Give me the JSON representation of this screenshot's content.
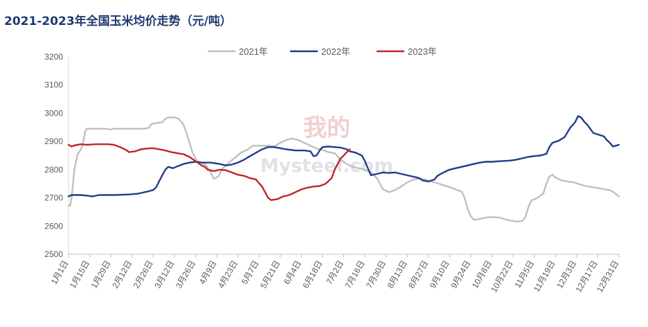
{
  "chart_data": {
    "type": "line",
    "title": "2021-2023年全国玉米均价走势（元/吨）",
    "xlabel": "",
    "ylabel": "",
    "ylim": [
      2500,
      3200
    ],
    "yticks": [
      2500,
      2600,
      2700,
      2800,
      2900,
      3000,
      3100,
      3200
    ],
    "x_domain_days": [
      0,
      364
    ],
    "xticks": [
      {
        "label": "1月1日",
        "day": 0
      },
      {
        "label": "1月15日",
        "day": 14
      },
      {
        "label": "1月29日",
        "day": 28
      },
      {
        "label": "2月12日",
        "day": 42
      },
      {
        "label": "2月26日",
        "day": 56
      },
      {
        "label": "3月12日",
        "day": 70
      },
      {
        "label": "3月26日",
        "day": 84
      },
      {
        "label": "4月9日",
        "day": 98
      },
      {
        "label": "4月23日",
        "day": 112
      },
      {
        "label": "5月7日",
        "day": 126
      },
      {
        "label": "5月21日",
        "day": 140
      },
      {
        "label": "6月4日",
        "day": 154
      },
      {
        "label": "6月18日",
        "day": 168
      },
      {
        "label": "7月2日",
        "day": 182
      },
      {
        "label": "7月16日",
        "day": 196
      },
      {
        "label": "7月30日",
        "day": 210
      },
      {
        "label": "8月13日",
        "day": 224
      },
      {
        "label": "8月27日",
        "day": 238
      },
      {
        "label": "9月10日",
        "day": 252
      },
      {
        "label": "9月24日",
        "day": 266
      },
      {
        "label": "10月8日",
        "day": 280
      },
      {
        "label": "10月22日",
        "day": 294
      },
      {
        "label": "11月5日",
        "day": 308
      },
      {
        "label": "11月19日",
        "day": 322
      },
      {
        "label": "12月3日",
        "day": 336
      },
      {
        "label": "12月17日",
        "day": 350
      },
      {
        "label": "12月31日",
        "day": 364
      }
    ],
    "grid": false,
    "legend_position": "top-center",
    "series": [
      {
        "name": "2021年",
        "color": "#bfbfbf",
        "points": [
          [
            0,
            2672
          ],
          [
            1,
            2672
          ],
          [
            2,
            2700
          ],
          [
            4,
            2805
          ],
          [
            6,
            2855
          ],
          [
            8,
            2870
          ],
          [
            9,
            2885
          ],
          [
            10,
            2905
          ],
          [
            11,
            2935
          ],
          [
            12,
            2945
          ],
          [
            18,
            2945
          ],
          [
            25,
            2945
          ],
          [
            28,
            2942
          ],
          [
            30,
            2945
          ],
          [
            40,
            2945
          ],
          [
            50,
            2945
          ],
          [
            53,
            2948
          ],
          [
            55,
            2962
          ],
          [
            58,
            2965
          ],
          [
            62,
            2968
          ],
          [
            64,
            2980
          ],
          [
            66,
            2985
          ],
          [
            70,
            2985
          ],
          [
            73,
            2980
          ],
          [
            76,
            2960
          ],
          [
            78,
            2930
          ],
          [
            80,
            2895
          ],
          [
            82,
            2860
          ],
          [
            85,
            2830
          ],
          [
            88,
            2825
          ],
          [
            91,
            2815
          ],
          [
            94,
            2790
          ],
          [
            96,
            2768
          ],
          [
            99,
            2775
          ],
          [
            102,
            2805
          ],
          [
            106,
            2825
          ],
          [
            110,
            2842
          ],
          [
            114,
            2860
          ],
          [
            118,
            2870
          ],
          [
            122,
            2885
          ],
          [
            127,
            2885
          ],
          [
            133,
            2885
          ],
          [
            136,
            2882
          ],
          [
            140,
            2895
          ],
          [
            144,
            2905
          ],
          [
            148,
            2910
          ],
          [
            152,
            2905
          ],
          [
            156,
            2895
          ],
          [
            160,
            2885
          ],
          [
            164,
            2875
          ],
          [
            168,
            2870
          ],
          [
            172,
            2862
          ],
          [
            176,
            2858
          ],
          [
            180,
            2835
          ],
          [
            184,
            2820
          ],
          [
            188,
            2810
          ],
          [
            192,
            2805
          ],
          [
            196,
            2800
          ],
          [
            200,
            2790
          ],
          [
            204,
            2770
          ],
          [
            208,
            2730
          ],
          [
            212,
            2720
          ],
          [
            216,
            2728
          ],
          [
            220,
            2740
          ],
          [
            224,
            2755
          ],
          [
            228,
            2765
          ],
          [
            232,
            2768
          ],
          [
            236,
            2765
          ],
          [
            240,
            2758
          ],
          [
            244,
            2752
          ],
          [
            248,
            2745
          ],
          [
            252,
            2738
          ],
          [
            256,
            2730
          ],
          [
            260,
            2722
          ],
          [
            262,
            2700
          ],
          [
            264,
            2660
          ],
          [
            266,
            2635
          ],
          [
            268,
            2622
          ],
          [
            272,
            2625
          ],
          [
            276,
            2630
          ],
          [
            280,
            2632
          ],
          [
            285,
            2630
          ],
          [
            290,
            2622
          ],
          [
            296,
            2616
          ],
          [
            300,
            2618
          ],
          [
            302,
            2630
          ],
          [
            304,
            2665
          ],
          [
            306,
            2690
          ],
          [
            310,
            2700
          ],
          [
            314,
            2715
          ],
          [
            316,
            2750
          ],
          [
            318,
            2775
          ],
          [
            320,
            2782
          ],
          [
            322,
            2772
          ],
          [
            326,
            2762
          ],
          [
            330,
            2758
          ],
          [
            334,
            2755
          ],
          [
            338,
            2748
          ],
          [
            342,
            2742
          ],
          [
            346,
            2738
          ],
          [
            350,
            2735
          ],
          [
            355,
            2730
          ],
          [
            358,
            2728
          ],
          [
            361,
            2718
          ],
          [
            364,
            2705
          ]
        ]
      },
      {
        "name": "2022年",
        "color": "#1f3d8a",
        "points": [
          [
            0,
            2705
          ],
          [
            2,
            2710
          ],
          [
            8,
            2710
          ],
          [
            12,
            2708
          ],
          [
            16,
            2705
          ],
          [
            20,
            2710
          ],
          [
            30,
            2710
          ],
          [
            40,
            2712
          ],
          [
            46,
            2715
          ],
          [
            52,
            2722
          ],
          [
            56,
            2728
          ],
          [
            58,
            2738
          ],
          [
            61,
            2770
          ],
          [
            64,
            2800
          ],
          [
            66,
            2810
          ],
          [
            69,
            2805
          ],
          [
            72,
            2812
          ],
          [
            76,
            2820
          ],
          [
            80,
            2825
          ],
          [
            84,
            2828
          ],
          [
            88,
            2825
          ],
          [
            94,
            2825
          ],
          [
            100,
            2820
          ],
          [
            104,
            2815
          ],
          [
            108,
            2818
          ],
          [
            112,
            2825
          ],
          [
            116,
            2835
          ],
          [
            120,
            2848
          ],
          [
            124,
            2860
          ],
          [
            128,
            2872
          ],
          [
            132,
            2880
          ],
          [
            136,
            2880
          ],
          [
            140,
            2876
          ],
          [
            144,
            2872
          ],
          [
            150,
            2868
          ],
          [
            156,
            2868
          ],
          [
            160,
            2865
          ],
          [
            162,
            2848
          ],
          [
            164,
            2850
          ],
          [
            166,
            2868
          ],
          [
            168,
            2880
          ],
          [
            172,
            2882
          ],
          [
            176,
            2880
          ],
          [
            180,
            2878
          ],
          [
            184,
            2872
          ],
          [
            186,
            2865
          ],
          [
            190,
            2860
          ],
          [
            194,
            2850
          ],
          [
            196,
            2830
          ],
          [
            198,
            2805
          ],
          [
            200,
            2780
          ],
          [
            204,
            2785
          ],
          [
            208,
            2790
          ],
          [
            212,
            2788
          ],
          [
            216,
            2790
          ],
          [
            220,
            2785
          ],
          [
            224,
            2780
          ],
          [
            228,
            2775
          ],
          [
            232,
            2770
          ],
          [
            234,
            2762
          ],
          [
            238,
            2758
          ],
          [
            242,
            2765
          ],
          [
            244,
            2778
          ],
          [
            248,
            2790
          ],
          [
            252,
            2800
          ],
          [
            256,
            2805
          ],
          [
            260,
            2810
          ],
          [
            264,
            2815
          ],
          [
            268,
            2820
          ],
          [
            272,
            2825
          ],
          [
            276,
            2828
          ],
          [
            280,
            2828
          ],
          [
            286,
            2830
          ],
          [
            292,
            2832
          ],
          [
            296,
            2835
          ],
          [
            300,
            2840
          ],
          [
            304,
            2845
          ],
          [
            308,
            2848
          ],
          [
            312,
            2850
          ],
          [
            316,
            2856
          ],
          [
            318,
            2880
          ],
          [
            320,
            2895
          ],
          [
            324,
            2902
          ],
          [
            328,
            2915
          ],
          [
            332,
            2950
          ],
          [
            335,
            2968
          ],
          [
            337,
            2990
          ],
          [
            339,
            2985
          ],
          [
            341,
            2970
          ],
          [
            343,
            2960
          ],
          [
            345,
            2945
          ],
          [
            347,
            2930
          ],
          [
            350,
            2925
          ],
          [
            354,
            2918
          ],
          [
            356,
            2905
          ],
          [
            358,
            2895
          ],
          [
            360,
            2882
          ],
          [
            362,
            2885
          ],
          [
            364,
            2888
          ]
        ]
      },
      {
        "name": "2023年",
        "color": "#c0242b",
        "points": [
          [
            0,
            2888
          ],
          [
            2,
            2882
          ],
          [
            4,
            2886
          ],
          [
            8,
            2890
          ],
          [
            12,
            2888
          ],
          [
            18,
            2890
          ],
          [
            26,
            2890
          ],
          [
            30,
            2888
          ],
          [
            34,
            2880
          ],
          [
            38,
            2870
          ],
          [
            40,
            2862
          ],
          [
            44,
            2865
          ],
          [
            48,
            2872
          ],
          [
            52,
            2875
          ],
          [
            56,
            2876
          ],
          [
            60,
            2872
          ],
          [
            64,
            2868
          ],
          [
            68,
            2862
          ],
          [
            72,
            2858
          ],
          [
            76,
            2855
          ],
          [
            80,
            2845
          ],
          [
            84,
            2830
          ],
          [
            88,
            2815
          ],
          [
            90,
            2810
          ],
          [
            92,
            2800
          ],
          [
            96,
            2795
          ],
          [
            100,
            2800
          ],
          [
            104,
            2798
          ],
          [
            108,
            2790
          ],
          [
            112,
            2782
          ],
          [
            116,
            2778
          ],
          [
            120,
            2770
          ],
          [
            124,
            2765
          ],
          [
            126,
            2752
          ],
          [
            128,
            2740
          ],
          [
            130,
            2720
          ],
          [
            132,
            2700
          ],
          [
            134,
            2692
          ],
          [
            138,
            2695
          ],
          [
            142,
            2705
          ],
          [
            146,
            2710
          ],
          [
            150,
            2720
          ],
          [
            154,
            2730
          ],
          [
            158,
            2736
          ],
          [
            162,
            2740
          ],
          [
            166,
            2742
          ],
          [
            170,
            2750
          ],
          [
            174,
            2770
          ],
          [
            176,
            2800
          ],
          [
            178,
            2820
          ],
          [
            180,
            2840
          ],
          [
            182,
            2850
          ],
          [
            184,
            2862
          ],
          [
            186,
            2872
          ]
        ]
      }
    ]
  },
  "watermark": {
    "top_text": "我的",
    "bottom_text": "Mysteel.com"
  }
}
